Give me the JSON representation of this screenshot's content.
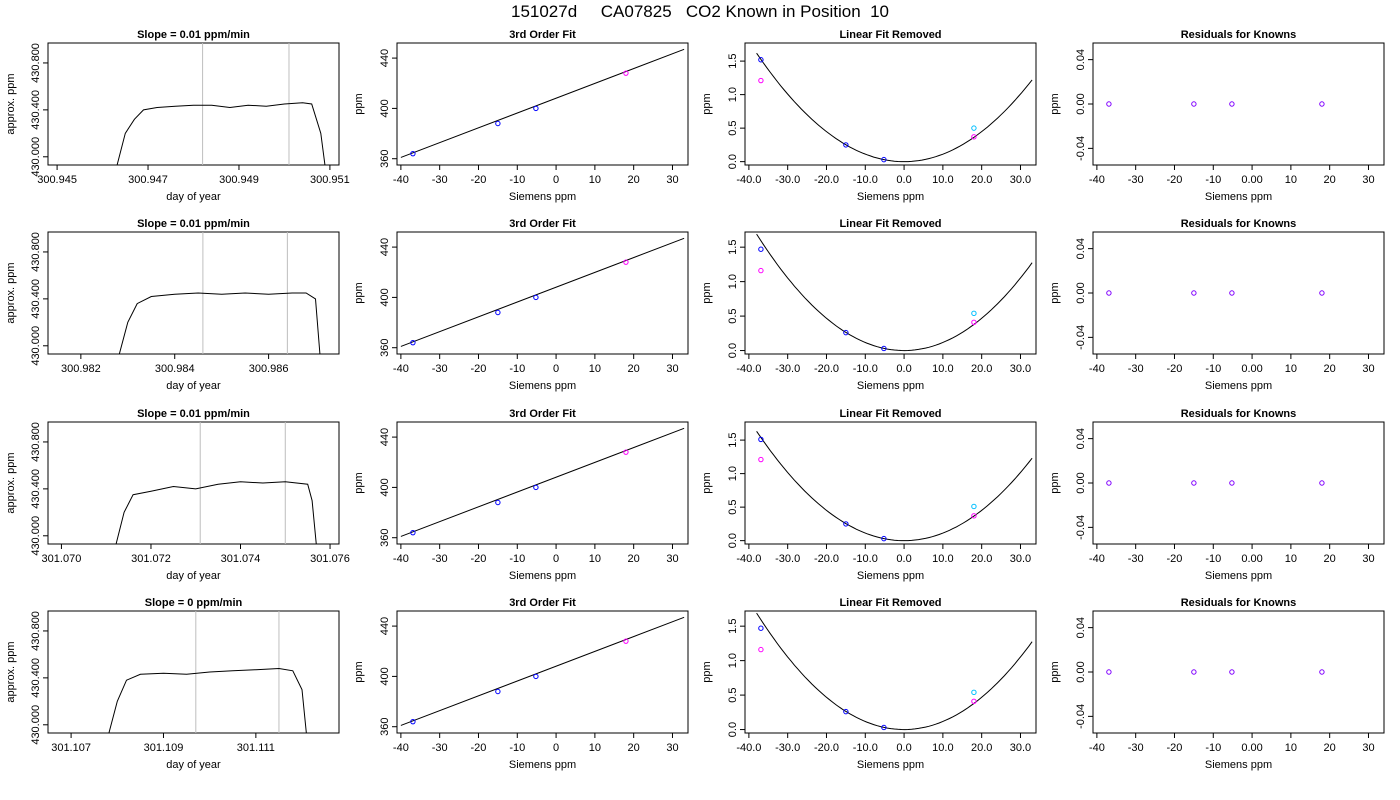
{
  "title": "151027d     CA07825   CO2 Known in Position  10",
  "chart_data": [
    {
      "type": "line",
      "title": "Slope =  0.01  ppm/min",
      "xlabel": "day of year",
      "ylabel": "approx. ppm",
      "xlim": [
        300.9448,
        300.9512
      ],
      "ylim": [
        429.93,
        430.97
      ],
      "xticks": [
        300.945,
        300.947,
        300.949,
        300.951
      ],
      "yticks": [
        430.0,
        430.4,
        430.8
      ],
      "vlines": [
        300.9482,
        300.9501
      ],
      "trace": [
        [
          300.9463,
          429.9
        ],
        [
          300.9465,
          430.2
        ],
        [
          300.9467,
          430.32
        ],
        [
          300.9469,
          430.4
        ],
        [
          300.9472,
          430.42
        ],
        [
          300.9476,
          430.43
        ],
        [
          300.948,
          430.44
        ],
        [
          300.9484,
          430.44
        ],
        [
          300.9488,
          430.42
        ],
        [
          300.9492,
          430.44
        ],
        [
          300.9496,
          430.43
        ],
        [
          300.95,
          430.45
        ],
        [
          300.9504,
          430.46
        ],
        [
          300.9506,
          430.45
        ],
        [
          300.9508,
          430.2
        ],
        [
          300.9509,
          429.9
        ]
      ]
    },
    {
      "type": "scatter",
      "title": "3rd Order Fit",
      "xlabel": "Siemens ppm",
      "ylabel": "ppm",
      "xlim": [
        -41,
        34
      ],
      "ylim": [
        355,
        452
      ],
      "xticks": [
        -40,
        -30,
        -20,
        -10,
        0,
        10,
        20,
        30
      ],
      "yticks": [
        360,
        400,
        440
      ],
      "line": [
        [
          -40,
          361
        ],
        [
          33,
          447
        ]
      ],
      "points": [
        {
          "x": -36.9,
          "y": 364,
          "color": "#0000ff"
        },
        {
          "x": -15,
          "y": 388,
          "color": "#0000ff"
        },
        {
          "x": -5.2,
          "y": 400,
          "color": "#0000ff"
        },
        {
          "x": 18,
          "y": 428,
          "color": "#ff00ff"
        }
      ]
    },
    {
      "type": "scatter",
      "title": "Linear Fit Removed",
      "xlabel": "Siemens ppm",
      "ylabel": "ppm",
      "xlim": [
        -41,
        34
      ],
      "ylim": [
        -0.05,
        1.77
      ],
      "xticks": [
        -40,
        -30,
        -20,
        -10,
        0,
        10,
        20,
        30
      ],
      "yticks": [
        0.0,
        0.5,
        1.0,
        1.5
      ],
      "curve": {
        "a": 0.00112,
        "from": -38,
        "to": 33
      },
      "points": [
        {
          "x": -36.9,
          "y": 1.52,
          "color": "#0000ff"
        },
        {
          "x": -36.9,
          "y": 1.21,
          "color": "#ff00ff"
        },
        {
          "x": -15,
          "y": 0.25,
          "color": "#0000ff"
        },
        {
          "x": -5.2,
          "y": 0.03,
          "color": "#0000ff"
        },
        {
          "x": 18,
          "y": 0.5,
          "color": "#00bfff"
        },
        {
          "x": 18,
          "y": 0.37,
          "color": "#ff00ff"
        }
      ]
    },
    {
      "type": "scatter",
      "title": "Residuals for Knowns",
      "xlabel": "Siemens ppm",
      "ylabel": "ppm",
      "xlim": [
        -41,
        34
      ],
      "ylim": [
        -0.055,
        0.055
      ],
      "xticks": [
        -40,
        -30,
        -20,
        -10,
        0,
        10,
        20,
        30
      ],
      "yticks": [
        -0.04,
        0.0,
        0.04
      ],
      "points": [
        {
          "x": -36.9,
          "y": 0,
          "color": "#8000ff"
        },
        {
          "x": -15,
          "y": 0,
          "color": "#8000ff"
        },
        {
          "x": -5.2,
          "y": 0,
          "color": "#8000ff"
        },
        {
          "x": 18,
          "y": 0,
          "color": "#8000ff"
        }
      ]
    },
    {
      "type": "line",
      "title": "Slope =  0.01  ppm/min",
      "xlabel": "day of year",
      "ylabel": "approx. ppm",
      "xlim": [
        300.9813,
        300.9875
      ],
      "ylim": [
        429.93,
        430.97
      ],
      "xticks": [
        300.982,
        300.984,
        300.986
      ],
      "yticks": [
        430.0,
        430.4,
        430.8
      ],
      "vlines": [
        300.9846,
        300.9864
      ],
      "trace": [
        [
          300.9828,
          429.9
        ],
        [
          300.983,
          430.2
        ],
        [
          300.9832,
          430.36
        ],
        [
          300.9835,
          430.42
        ],
        [
          300.984,
          430.44
        ],
        [
          300.9845,
          430.45
        ],
        [
          300.985,
          430.44
        ],
        [
          300.9855,
          430.45
        ],
        [
          300.986,
          430.44
        ],
        [
          300.9865,
          430.45
        ],
        [
          300.9868,
          430.45
        ],
        [
          300.987,
          430.4
        ],
        [
          300.9871,
          429.9
        ]
      ]
    },
    {
      "type": "scatter",
      "title": "3rd Order Fit",
      "xlabel": "Siemens ppm",
      "ylabel": "ppm",
      "xlim": [
        -41,
        34
      ],
      "ylim": [
        355,
        452
      ],
      "xticks": [
        -40,
        -30,
        -20,
        -10,
        0,
        10,
        20,
        30
      ],
      "yticks": [
        360,
        400,
        440
      ],
      "line": [
        [
          -40,
          361
        ],
        [
          33,
          447
        ]
      ],
      "points": [
        {
          "x": -36.9,
          "y": 364,
          "color": "#0000ff"
        },
        {
          "x": -15,
          "y": 388,
          "color": "#0000ff"
        },
        {
          "x": -5.2,
          "y": 400,
          "color": "#0000ff"
        },
        {
          "x": 18,
          "y": 428,
          "color": "#ff00ff"
        }
      ]
    },
    {
      "type": "scatter",
      "title": "Linear Fit Removed",
      "xlabel": "Siemens ppm",
      "ylabel": "ppm",
      "xlim": [
        -41,
        34
      ],
      "ylim": [
        -0.05,
        1.72
      ],
      "xticks": [
        -40,
        -30,
        -20,
        -10,
        0,
        10,
        20,
        30
      ],
      "yticks": [
        0.0,
        0.5,
        1.0,
        1.5
      ],
      "curve": {
        "a": 0.00117,
        "from": -38,
        "to": 33
      },
      "points": [
        {
          "x": -36.9,
          "y": 1.47,
          "color": "#0000ff"
        },
        {
          "x": -36.9,
          "y": 1.16,
          "color": "#ff00ff"
        },
        {
          "x": -15,
          "y": 0.26,
          "color": "#0000ff"
        },
        {
          "x": -5.2,
          "y": 0.03,
          "color": "#0000ff"
        },
        {
          "x": 18,
          "y": 0.54,
          "color": "#00bfff"
        },
        {
          "x": 18,
          "y": 0.41,
          "color": "#ff00ff"
        }
      ]
    },
    {
      "type": "scatter",
      "title": "Residuals for Knowns",
      "xlabel": "Siemens ppm",
      "ylabel": "ppm",
      "xlim": [
        -41,
        34
      ],
      "ylim": [
        -0.055,
        0.055
      ],
      "xticks": [
        -40,
        -30,
        -20,
        -10,
        0,
        10,
        20,
        30
      ],
      "yticks": [
        -0.04,
        0.0,
        0.04
      ],
      "points": [
        {
          "x": -36.9,
          "y": 0,
          "color": "#8000ff"
        },
        {
          "x": -15,
          "y": 0,
          "color": "#8000ff"
        },
        {
          "x": -5.2,
          "y": 0,
          "color": "#8000ff"
        },
        {
          "x": 18,
          "y": 0,
          "color": "#8000ff"
        }
      ]
    },
    {
      "type": "line",
      "title": "Slope =  0.01  ppm/min",
      "xlabel": "day of year",
      "ylabel": "approx. ppm",
      "xlim": [
        301.0697,
        301.0762
      ],
      "ylim": [
        429.93,
        430.97
      ],
      "xticks": [
        301.07,
        301.072,
        301.074,
        301.076
      ],
      "yticks": [
        430.0,
        430.4,
        430.8
      ],
      "vlines": [
        301.0731,
        301.075
      ],
      "trace": [
        [
          301.0712,
          429.9
        ],
        [
          301.0714,
          430.2
        ],
        [
          301.0716,
          430.35
        ],
        [
          301.072,
          430.38
        ],
        [
          301.0725,
          430.42
        ],
        [
          301.073,
          430.4
        ],
        [
          301.0735,
          430.44
        ],
        [
          301.074,
          430.46
        ],
        [
          301.0745,
          430.45
        ],
        [
          301.075,
          430.46
        ],
        [
          301.0755,
          430.44
        ],
        [
          301.0756,
          430.3
        ],
        [
          301.0757,
          429.9
        ]
      ]
    },
    {
      "type": "scatter",
      "title": "3rd Order Fit",
      "xlabel": "Siemens ppm",
      "ylabel": "ppm",
      "xlim": [
        -41,
        34
      ],
      "ylim": [
        355,
        452
      ],
      "xticks": [
        -40,
        -30,
        -20,
        -10,
        0,
        10,
        20,
        30
      ],
      "yticks": [
        360,
        400,
        440
      ],
      "line": [
        [
          -40,
          361
        ],
        [
          33,
          447
        ]
      ],
      "points": [
        {
          "x": -36.9,
          "y": 364,
          "color": "#0000ff"
        },
        {
          "x": -15,
          "y": 388,
          "color": "#0000ff"
        },
        {
          "x": -5.2,
          "y": 400,
          "color": "#0000ff"
        },
        {
          "x": 18,
          "y": 428,
          "color": "#ff00ff"
        }
      ]
    },
    {
      "type": "scatter",
      "title": "Linear Fit Removed",
      "xlabel": "Siemens ppm",
      "ylabel": "ppm",
      "xlim": [
        -41,
        34
      ],
      "ylim": [
        -0.05,
        1.77
      ],
      "xticks": [
        -40,
        -30,
        -20,
        -10,
        0,
        10,
        20,
        30
      ],
      "yticks": [
        0.0,
        0.5,
        1.0,
        1.5
      ],
      "curve": {
        "a": 0.00113,
        "from": -38,
        "to": 33
      },
      "points": [
        {
          "x": -36.9,
          "y": 1.51,
          "color": "#0000ff"
        },
        {
          "x": -36.9,
          "y": 1.21,
          "color": "#ff00ff"
        },
        {
          "x": -15,
          "y": 0.25,
          "color": "#0000ff"
        },
        {
          "x": -5.2,
          "y": 0.03,
          "color": "#0000ff"
        },
        {
          "x": 18,
          "y": 0.51,
          "color": "#00bfff"
        },
        {
          "x": 18,
          "y": 0.37,
          "color": "#ff00ff"
        }
      ]
    },
    {
      "type": "scatter",
      "title": "Residuals for Knowns",
      "xlabel": "Siemens ppm",
      "ylabel": "ppm",
      "xlim": [
        -41,
        34
      ],
      "ylim": [
        -0.055,
        0.055
      ],
      "xticks": [
        -40,
        -30,
        -20,
        -10,
        0,
        10,
        20,
        30
      ],
      "yticks": [
        -0.04,
        0.0,
        0.04
      ],
      "points": [
        {
          "x": -36.9,
          "y": 0,
          "color": "#8000ff"
        },
        {
          "x": -15,
          "y": 0,
          "color": "#8000ff"
        },
        {
          "x": -5.2,
          "y": 0,
          "color": "#8000ff"
        },
        {
          "x": 18,
          "y": 0,
          "color": "#8000ff"
        }
      ]
    },
    {
      "type": "line",
      "title": "Slope =  0  ppm/min",
      "xlabel": "day of year",
      "ylabel": "approx. ppm",
      "xlim": [
        301.1065,
        301.1128
      ],
      "ylim": [
        429.93,
        430.97
      ],
      "xticks": [
        301.107,
        301.109,
        301.111
      ],
      "yticks": [
        430.0,
        430.4,
        430.8
      ],
      "vlines": [
        301.1097,
        301.1115
      ],
      "trace": [
        [
          301.1078,
          429.9
        ],
        [
          301.108,
          430.2
        ],
        [
          301.1082,
          430.38
        ],
        [
          301.1085,
          430.43
        ],
        [
          301.109,
          430.44
        ],
        [
          301.1095,
          430.43
        ],
        [
          301.11,
          430.45
        ],
        [
          301.1105,
          430.46
        ],
        [
          301.111,
          430.47
        ],
        [
          301.1115,
          430.48
        ],
        [
          301.1118,
          430.46
        ],
        [
          301.112,
          430.3
        ],
        [
          301.1121,
          429.9
        ]
      ]
    },
    {
      "type": "scatter",
      "title": "3rd Order Fit",
      "xlabel": "Siemens ppm",
      "ylabel": "ppm",
      "xlim": [
        -41,
        34
      ],
      "ylim": [
        355,
        452
      ],
      "xticks": [
        -40,
        -30,
        -20,
        -10,
        0,
        10,
        20,
        30
      ],
      "yticks": [
        360,
        400,
        440
      ],
      "line": [
        [
          -40,
          361
        ],
        [
          33,
          447
        ]
      ],
      "points": [
        {
          "x": -36.9,
          "y": 364,
          "color": "#0000ff"
        },
        {
          "x": -15,
          "y": 388,
          "color": "#0000ff"
        },
        {
          "x": -5.2,
          "y": 400,
          "color": "#0000ff"
        },
        {
          "x": 18,
          "y": 428,
          "color": "#ff00ff"
        }
      ]
    },
    {
      "type": "scatter",
      "title": "Linear Fit Removed",
      "xlabel": "Siemens ppm",
      "ylabel": "ppm",
      "xlim": [
        -41,
        34
      ],
      "ylim": [
        -0.05,
        1.72
      ],
      "xticks": [
        -40,
        -30,
        -20,
        -10,
        0,
        10,
        20,
        30
      ],
      "yticks": [
        0.0,
        0.5,
        1.0,
        1.5
      ],
      "curve": {
        "a": 0.00117,
        "from": -38,
        "to": 33
      },
      "points": [
        {
          "x": -36.9,
          "y": 1.47,
          "color": "#0000ff"
        },
        {
          "x": -36.9,
          "y": 1.16,
          "color": "#ff00ff"
        },
        {
          "x": -15,
          "y": 0.26,
          "color": "#0000ff"
        },
        {
          "x": -5.2,
          "y": 0.03,
          "color": "#0000ff"
        },
        {
          "x": 18,
          "y": 0.54,
          "color": "#00bfff"
        },
        {
          "x": 18,
          "y": 0.41,
          "color": "#ff00ff"
        }
      ]
    },
    {
      "type": "scatter",
      "title": "Residuals for Knowns",
      "xlabel": "Siemens ppm",
      "ylabel": "ppm",
      "xlim": [
        -41,
        34
      ],
      "ylim": [
        -0.055,
        0.055
      ],
      "xticks": [
        -40,
        -30,
        -20,
        -10,
        0,
        10,
        20,
        30
      ],
      "yticks": [
        -0.04,
        0.0,
        0.04
      ],
      "points": [
        {
          "x": -36.9,
          "y": 0,
          "color": "#8000ff"
        },
        {
          "x": -15,
          "y": 0,
          "color": "#8000ff"
        },
        {
          "x": -5.2,
          "y": 0,
          "color": "#8000ff"
        },
        {
          "x": 18,
          "y": 0,
          "color": "#8000ff"
        }
      ]
    }
  ]
}
